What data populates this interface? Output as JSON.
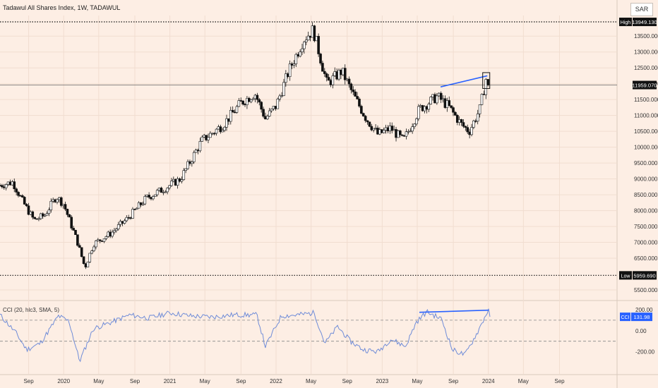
{
  "header": {
    "title": "Tadawul All Shares Index, 1W, TADAWUL",
    "currency": "SAR"
  },
  "colors": {
    "background": "#fdeee4",
    "grid": "#f1ddd0",
    "up_body": "#ffffff",
    "down_body": "#111111",
    "trendline": "#2962ff",
    "cci_line": "#6f8cd8",
    "label_bg": "#111111",
    "label_text": "#ffffff",
    "cci_label_bg": "#2962ff"
  },
  "price_pane": {
    "high_label": "High",
    "high_value": "13949.130",
    "current_value": "11959.070",
    "low_label": "Low",
    "low_value": "5959.690",
    "ticks": [
      "13500.000",
      "13000.000",
      "12500.000",
      "12000.000",
      "11500.000",
      "11000.000",
      "10500.000",
      "10000.000",
      "9500.000",
      "9000.000",
      "8500.000",
      "8000.000",
      "7500.000",
      "7000.000",
      "6500.000",
      "5500.000"
    ]
  },
  "cci_pane": {
    "title": "CCI (20, hlc3, SMA, 5)",
    "label": "CCI",
    "current_value": "131.98",
    "ticks": [
      "200.00",
      "0.00",
      "-200.00"
    ]
  },
  "time_axis": {
    "labels": [
      "Sep",
      "2020",
      "May",
      "Sep",
      "2021",
      "May",
      "Sep",
      "2022",
      "May",
      "Sep",
      "2023",
      "May",
      "Sep",
      "2024",
      "May",
      "Sep"
    ]
  },
  "chart_data": [
    {
      "type": "candlestick",
      "interval": "1W",
      "x_unit": "approx. years (decimal)",
      "ylim": [
        5300,
        14150
      ],
      "high": 13949.13,
      "low": 5959.69,
      "last": 11959.07,
      "points": [
        {
          "x": 2019.4,
          "y": 8800
        },
        {
          "x": 2019.52,
          "y": 8900
        },
        {
          "x": 2019.62,
          "y": 8250
        },
        {
          "x": 2019.72,
          "y": 7700
        },
        {
          "x": 2019.82,
          "y": 7850
        },
        {
          "x": 2019.93,
          "y": 8450
        },
        {
          "x": 2020.0,
          "y": 8200
        },
        {
          "x": 2020.13,
          "y": 7000
        },
        {
          "x": 2020.2,
          "y": 6200
        },
        {
          "x": 2020.28,
          "y": 6950
        },
        {
          "x": 2020.45,
          "y": 7300
        },
        {
          "x": 2020.6,
          "y": 7750
        },
        {
          "x": 2020.78,
          "y": 8400
        },
        {
          "x": 2020.95,
          "y": 8700
        },
        {
          "x": 2021.1,
          "y": 9000
        },
        {
          "x": 2021.3,
          "y": 10200
        },
        {
          "x": 2021.5,
          "y": 10700
        },
        {
          "x": 2021.67,
          "y": 11400
        },
        {
          "x": 2021.8,
          "y": 11700
        },
        {
          "x": 2021.9,
          "y": 10900
        },
        {
          "x": 2022.0,
          "y": 11300
        },
        {
          "x": 2022.12,
          "y": 12400
        },
        {
          "x": 2022.26,
          "y": 13400
        },
        {
          "x": 2022.35,
          "y": 13700
        },
        {
          "x": 2022.48,
          "y": 12000
        },
        {
          "x": 2022.62,
          "y": 12400
        },
        {
          "x": 2022.72,
          "y": 11700
        },
        {
          "x": 2022.85,
          "y": 10900
        },
        {
          "x": 2022.96,
          "y": 10400
        },
        {
          "x": 2023.08,
          "y": 10600
        },
        {
          "x": 2023.2,
          "y": 10200
        },
        {
          "x": 2023.35,
          "y": 11200
        },
        {
          "x": 2023.52,
          "y": 11600
        },
        {
          "x": 2023.62,
          "y": 11300
        },
        {
          "x": 2023.75,
          "y": 10700
        },
        {
          "x": 2023.82,
          "y": 10500
        },
        {
          "x": 2023.92,
          "y": 11200
        },
        {
          "x": 2023.98,
          "y": 12200
        },
        {
          "x": 2024.0,
          "y": 11959
        }
      ]
    },
    {
      "type": "line",
      "name": "CCI (20, hlc3, SMA, 5)",
      "x_unit": "approx. years (decimal)",
      "ylim": [
        -330,
        260
      ],
      "reference_lines": [
        100,
        -100
      ],
      "last": 131.98,
      "points": [
        {
          "x": 2019.4,
          "y": 150
        },
        {
          "x": 2019.55,
          "y": -20
        },
        {
          "x": 2019.65,
          "y": -180
        },
        {
          "x": 2019.78,
          "y": -120
        },
        {
          "x": 2019.95,
          "y": 140
        },
        {
          "x": 2020.05,
          "y": 90
        },
        {
          "x": 2020.15,
          "y": -290
        },
        {
          "x": 2020.28,
          "y": 20
        },
        {
          "x": 2020.45,
          "y": 80
        },
        {
          "x": 2020.62,
          "y": 150
        },
        {
          "x": 2020.8,
          "y": 120
        },
        {
          "x": 2021.0,
          "y": 170
        },
        {
          "x": 2021.2,
          "y": 140
        },
        {
          "x": 2021.4,
          "y": 130
        },
        {
          "x": 2021.6,
          "y": 150
        },
        {
          "x": 2021.82,
          "y": 150
        },
        {
          "x": 2021.9,
          "y": -150
        },
        {
          "x": 2022.05,
          "y": 140
        },
        {
          "x": 2022.2,
          "y": 150
        },
        {
          "x": 2022.36,
          "y": 170
        },
        {
          "x": 2022.46,
          "y": -120
        },
        {
          "x": 2022.58,
          "y": 40
        },
        {
          "x": 2022.7,
          "y": -100
        },
        {
          "x": 2022.82,
          "y": -180
        },
        {
          "x": 2022.96,
          "y": -200
        },
        {
          "x": 2023.08,
          "y": -80
        },
        {
          "x": 2023.22,
          "y": -150
        },
        {
          "x": 2023.32,
          "y": 80
        },
        {
          "x": 2023.42,
          "y": 180
        },
        {
          "x": 2023.56,
          "y": 110
        },
        {
          "x": 2023.66,
          "y": -180
        },
        {
          "x": 2023.78,
          "y": -230
        },
        {
          "x": 2023.9,
          "y": -10
        },
        {
          "x": 2024.0,
          "y": 200
        },
        {
          "x": 2024.02,
          "y": 132
        }
      ]
    }
  ]
}
